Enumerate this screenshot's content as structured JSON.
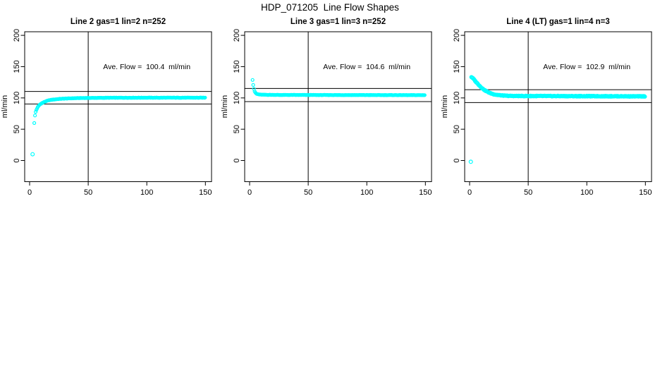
{
  "page": {
    "title": "HDP_071205  Line Flow Shapes"
  },
  "chart_data": [
    {
      "type": "scatter",
      "title": "Line 2 gas=1 lin=2 n=252",
      "ylabel": "ml/min",
      "n_points": 252,
      "ave_flow": 100.4,
      "annotation": "Ave. Flow =  100.4  ml/min",
      "annotation_at": {
        "x": 100,
        "y": 150
      },
      "x_ticks": [
        0,
        50,
        100,
        150
      ],
      "y_ticks": [
        0,
        50,
        100,
        150,
        200
      ],
      "xlim": [
        -6,
        156
      ],
      "ylim": [
        -33,
        206
      ],
      "ref_vline_x": 50,
      "ref_hlines": [
        90.4,
        110.4
      ],
      "marker_color": "#00ffff",
      "marker_r": 2,
      "step": 0.59,
      "jitter": 0.3,
      "seed": 1,
      "outliers": [
        [
          2.5,
          10
        ]
      ],
      "anchors": [
        [
          4,
          60
        ],
        [
          4.6,
          72
        ],
        [
          5.2,
          78
        ],
        [
          6,
          82
        ],
        [
          7,
          85.5
        ],
        [
          8,
          88
        ],
        [
          9,
          90
        ],
        [
          10,
          91.2
        ],
        [
          12,
          93.2
        ],
        [
          14,
          94.8
        ],
        [
          16,
          96
        ],
        [
          18,
          96.8
        ],
        [
          20,
          97.4
        ],
        [
          25,
          98.4
        ],
        [
          30,
          99
        ],
        [
          40,
          99.7
        ],
        [
          50,
          100
        ],
        [
          70,
          100.3
        ],
        [
          100,
          100.4
        ],
        [
          150,
          100.4
        ]
      ]
    },
    {
      "type": "scatter",
      "title": "Line 3 gas=1 lin=3 n=252",
      "ylabel": "ml/min",
      "n_points": 252,
      "ave_flow": 104.6,
      "annotation": "Ave. Flow =  104.6  ml/min",
      "annotation_at": {
        "x": 100,
        "y": 150
      },
      "x_ticks": [
        0,
        50,
        100,
        150
      ],
      "y_ticks": [
        0,
        50,
        100,
        150,
        200
      ],
      "xlim": [
        -6,
        156
      ],
      "ylim": [
        -33,
        206
      ],
      "ref_vline_x": 50,
      "ref_hlines": [
        94.1,
        115.1
      ],
      "marker_color": "#00ffff",
      "marker_r": 2,
      "step": 0.59,
      "jitter": 0.25,
      "seed": 2,
      "outliers": [],
      "anchors": [
        [
          2.5,
          129
        ],
        [
          3,
          122
        ],
        [
          3.5,
          116
        ],
        [
          4,
          112
        ],
        [
          4.5,
          109.5
        ],
        [
          5,
          108
        ],
        [
          6,
          106.5
        ],
        [
          7,
          106
        ],
        [
          8,
          105.6
        ],
        [
          10,
          105.2
        ],
        [
          15,
          105
        ],
        [
          25,
          104.8
        ],
        [
          50,
          104.7
        ],
        [
          100,
          104.6
        ],
        [
          150,
          104.5
        ]
      ]
    },
    {
      "type": "scatter",
      "title": "Line 4 (LT) gas=1 lin=4 n=3",
      "ylabel": "ml/min",
      "n_points": 3,
      "ave_flow": 102.9,
      "annotation": "Ave. Flow =  102.9  ml/min",
      "annotation_at": {
        "x": 100,
        "y": 150
      },
      "x_ticks": [
        0,
        50,
        100,
        150
      ],
      "y_ticks": [
        0,
        50,
        100,
        150,
        200
      ],
      "xlim": [
        -6,
        156
      ],
      "ylim": [
        -33,
        206
      ],
      "ref_vline_x": 50,
      "ref_hlines": [
        92.6,
        113.2
      ],
      "marker_color": "#00ffff",
      "marker_r": 2.3,
      "step": 0.45,
      "jitter": 0.55,
      "seed": 3,
      "outliers": [
        [
          1,
          -2
        ]
      ],
      "anchors": [
        [
          1.5,
          133.5
        ],
        [
          2,
          133
        ],
        [
          3,
          131
        ],
        [
          4,
          129
        ],
        [
          5,
          126.5
        ],
        [
          6,
          124.5
        ],
        [
          7,
          122.5
        ],
        [
          8,
          120.5
        ],
        [
          9,
          118.5
        ],
        [
          10,
          116.8
        ],
        [
          11,
          115
        ],
        [
          12,
          113.6
        ],
        [
          13,
          112.2
        ],
        [
          14,
          111
        ],
        [
          15,
          110
        ],
        [
          16,
          109
        ],
        [
          17,
          108.2
        ],
        [
          18,
          107.4
        ],
        [
          19,
          106.8
        ],
        [
          20,
          106.2
        ],
        [
          22,
          105.3
        ],
        [
          24,
          104.7
        ],
        [
          26,
          104.2
        ],
        [
          28,
          103.9
        ],
        [
          30,
          103.6
        ],
        [
          35,
          103.2
        ],
        [
          40,
          103.1
        ],
        [
          50,
          103
        ],
        [
          60,
          103
        ],
        [
          80,
          102.9
        ],
        [
          100,
          102.8
        ],
        [
          120,
          102.7
        ],
        [
          150,
          102.5
        ]
      ]
    }
  ]
}
